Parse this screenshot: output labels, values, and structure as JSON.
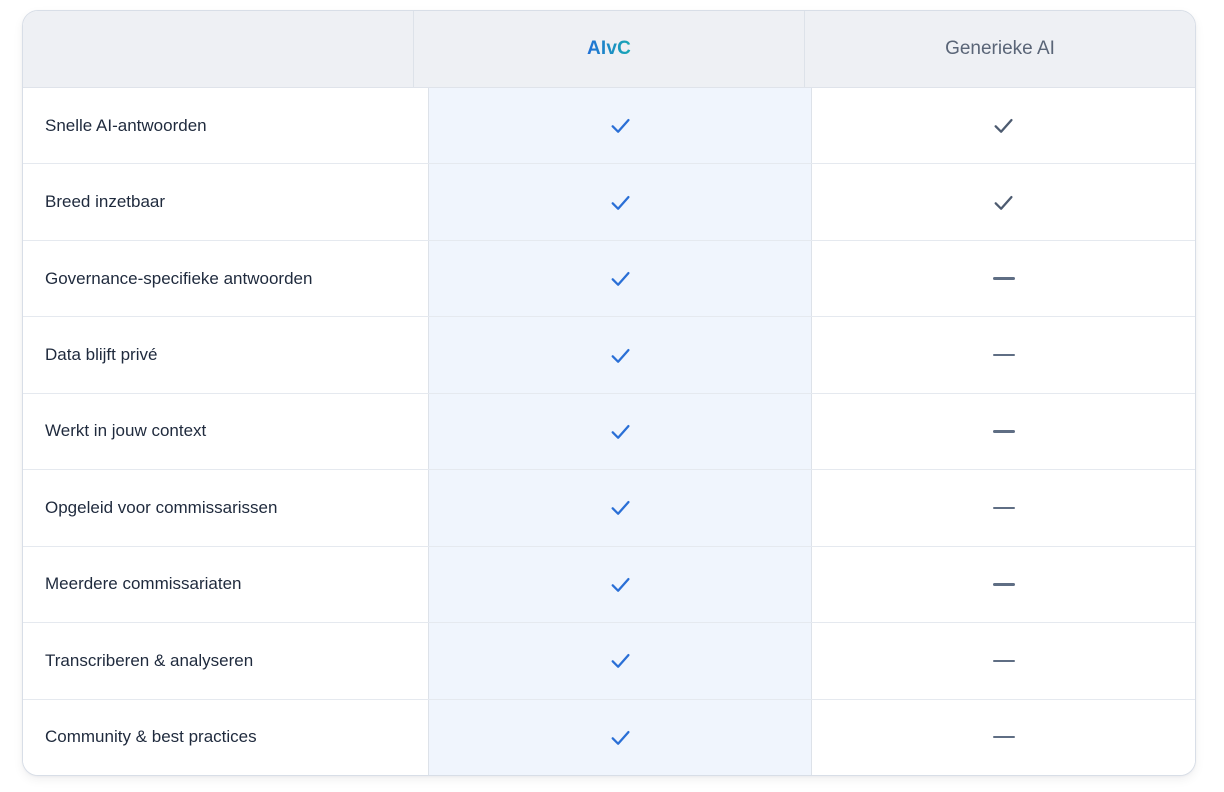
{
  "table": {
    "columns": [
      {
        "key": "feature",
        "label": ""
      },
      {
        "key": "aivc",
        "label": "AIvC"
      },
      {
        "key": "generic",
        "label": "Generieke AI"
      }
    ],
    "rows": [
      {
        "feature": "Snelle AI-antwoorden",
        "aivc": "check",
        "generic": "check"
      },
      {
        "feature": "Breed inzetbaar",
        "aivc": "check",
        "generic": "check"
      },
      {
        "feature": "Governance-specifieke antwoorden",
        "aivc": "check",
        "generic": "dash"
      },
      {
        "feature": "Data blijft privé",
        "aivc": "check",
        "generic": "dash"
      },
      {
        "feature": "Werkt in jouw context",
        "aivc": "check",
        "generic": "dash"
      },
      {
        "feature": "Opgeleid voor commissarissen",
        "aivc": "check",
        "generic": "dash"
      },
      {
        "feature": "Meerdere commissariaten",
        "aivc": "check",
        "generic": "dash"
      },
      {
        "feature": "Transcriberen & analyseren",
        "aivc": "check",
        "generic": "dash"
      },
      {
        "feature": "Community & best practices",
        "aivc": "check",
        "generic": "dash"
      }
    ],
    "cell_icons": {
      "check": "check-icon",
      "dash": "dash-icon"
    },
    "colors": {
      "aivc_gradient_start": "#2170d6",
      "aivc_gradient_end": "#17a8b4",
      "check_aivc": "#2a6fd6",
      "check_generic": "#4d5b70",
      "dash": "#5f6e84",
      "header_bg": "#eef0f4",
      "aivc_column_bg": "#f0f5fd"
    }
  }
}
